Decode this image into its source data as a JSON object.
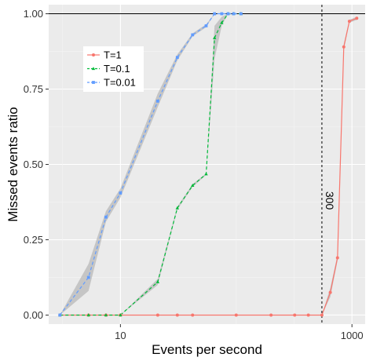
{
  "chart_data": {
    "type": "line",
    "xlabel": "Events per second",
    "ylabel": "Missed events ratio",
    "x_scale": "log",
    "xlim": [
      2.4,
      1300
    ],
    "ylim": [
      -0.03,
      1.03
    ],
    "x_ticks": [
      {
        "value": 10,
        "label": "10"
      },
      {
        "value": 1000,
        "label": "1000"
      }
    ],
    "y_ticks": [
      {
        "value": 0,
        "label": "0.00"
      },
      {
        "value": 0.25,
        "label": "0.25"
      },
      {
        "value": 0.5,
        "label": "0.50"
      },
      {
        "value": 0.75,
        "label": "0.75"
      },
      {
        "value": 1,
        "label": "1.00"
      }
    ],
    "grid": true,
    "legend_position": "top-left",
    "reference_lines": [
      {
        "axis": "x",
        "value": 550,
        "label": "300",
        "style": "dashed",
        "color": "#000000"
      },
      {
        "axis": "y",
        "value": 1.0,
        "style": "solid",
        "color": "#000000"
      }
    ],
    "series": [
      {
        "name": "T=1",
        "color": "#F8766D",
        "line_style": "solid",
        "marker": "circle",
        "points": [
          [
            3,
            0
          ],
          [
            5.3,
            0
          ],
          [
            7.5,
            0
          ],
          [
            10,
            0
          ],
          [
            21,
            0
          ],
          [
            31,
            0
          ],
          [
            42,
            0
          ],
          [
            100,
            0
          ],
          [
            200,
            0
          ],
          [
            320,
            0
          ],
          [
            420,
            0
          ],
          [
            550,
            0
          ],
          [
            650,
            0.075
          ],
          [
            750,
            0.19
          ],
          [
            850,
            0.89
          ],
          [
            950,
            0.975
          ],
          [
            1100,
            0.985
          ]
        ],
        "band": [
          [
            550,
            0,
            0
          ],
          [
            650,
            0.06,
            0.09
          ],
          [
            750,
            0.18,
            0.2
          ],
          [
            850,
            0.88,
            0.9
          ],
          [
            950,
            0.97,
            0.98
          ],
          [
            1100,
            0.98,
            0.99
          ]
        ]
      },
      {
        "name": "T=0.1",
        "color": "#00BA38",
        "line_style": "dashed",
        "marker": "triangle",
        "points": [
          [
            3,
            0
          ],
          [
            5.3,
            0
          ],
          [
            7.5,
            0
          ],
          [
            10,
            0
          ],
          [
            21,
            0.11
          ],
          [
            31,
            0.355
          ],
          [
            42,
            0.43
          ],
          [
            55,
            0.468
          ],
          [
            65,
            0.92
          ],
          [
            75,
            0.97
          ],
          [
            85,
            1.0
          ],
          [
            95,
            1.0
          ],
          [
            110,
            1.0
          ]
        ],
        "band": [
          [
            10,
            0,
            0
          ],
          [
            21,
            0.1,
            0.12
          ],
          [
            31,
            0.35,
            0.36
          ],
          [
            42,
            0.425,
            0.435
          ],
          [
            55,
            0.465,
            0.47
          ],
          [
            65,
            0.85,
            0.96
          ],
          [
            75,
            0.96,
            0.99
          ],
          [
            85,
            1.0,
            1.0
          ]
        ]
      },
      {
        "name": "T=0.01",
        "color": "#619CFF",
        "line_style": "dashed",
        "marker": "square",
        "points": [
          [
            3,
            0
          ],
          [
            5.3,
            0.125
          ],
          [
            7.5,
            0.325
          ],
          [
            10,
            0.405
          ],
          [
            21,
            0.71
          ],
          [
            31,
            0.855
          ],
          [
            42,
            0.93
          ],
          [
            55,
            0.96
          ],
          [
            65,
            1.0
          ],
          [
            75,
            1.0
          ],
          [
            85,
            1.0
          ],
          [
            95,
            1.0
          ],
          [
            110,
            1.0
          ]
        ],
        "band": [
          [
            3,
            0,
            0
          ],
          [
            5.3,
            0.08,
            0.17
          ],
          [
            7.5,
            0.31,
            0.345
          ],
          [
            10,
            0.39,
            0.42
          ],
          [
            21,
            0.69,
            0.735
          ],
          [
            31,
            0.845,
            0.865
          ],
          [
            42,
            0.925,
            0.935
          ],
          [
            55,
            0.955,
            0.965
          ],
          [
            65,
            1.0,
            1.0
          ]
        ]
      }
    ]
  }
}
